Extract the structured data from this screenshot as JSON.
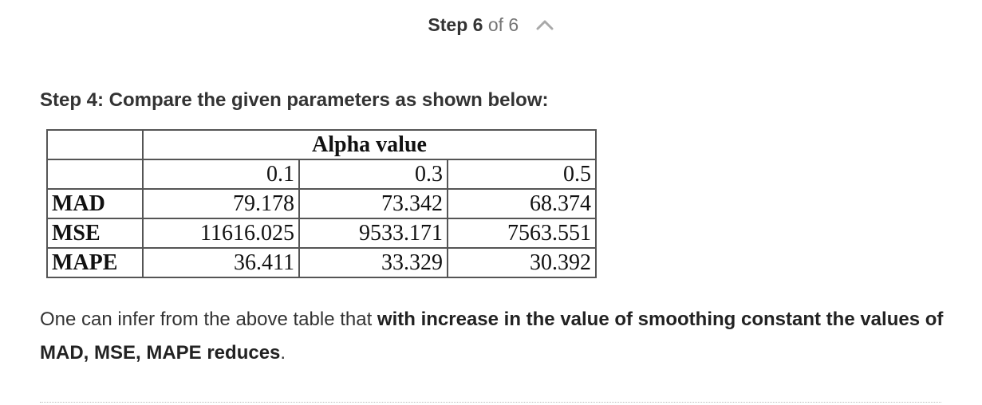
{
  "step_header": {
    "step_label": "Step 6",
    "of_label": "of 6",
    "collapse_icon": "chevron-up-icon"
  },
  "step_title": "Step 4: Compare the given parameters as shown below:",
  "table": {
    "group_header": "Alpha value",
    "alphas": [
      "0.1",
      "0.3",
      "0.5"
    ],
    "rows": [
      {
        "label": "MAD",
        "values": [
          "79.178",
          "73.342",
          "68.374"
        ]
      },
      {
        "label": "MSE",
        "values": [
          "11616.025",
          "9533.171",
          "7563.551"
        ]
      },
      {
        "label": "MAPE",
        "values": [
          "36.411",
          "33.329",
          "30.392"
        ]
      }
    ]
  },
  "conclusion": {
    "lead": "One can infer from the above table that ",
    "emphasis_1": "with increase in the value of smoothing constant the values of MAD, MSE, MAPE reduces",
    "tail": "."
  }
}
